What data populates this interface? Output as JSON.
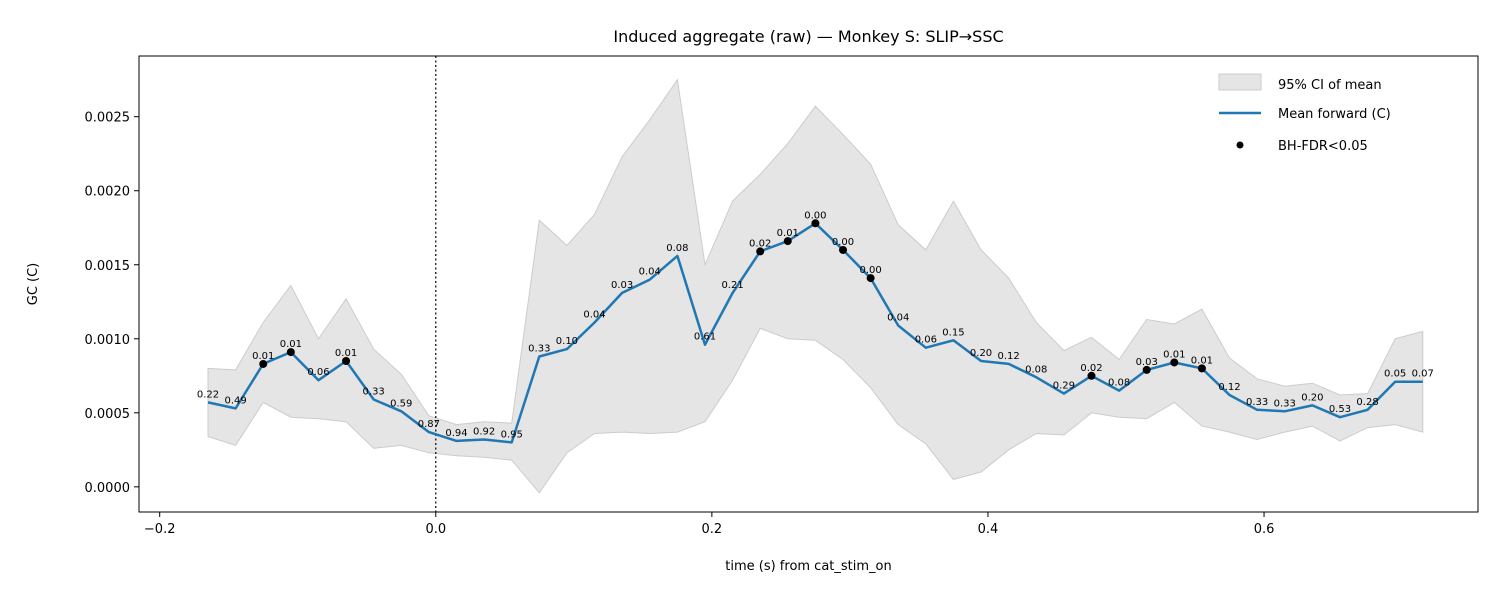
{
  "chart_data": {
    "type": "line",
    "title": "Induced aggregate (raw) — Monkey S: SLIP→SSC",
    "xlabel": "time (s) from cat_stim_on",
    "ylabel": "GC (C)",
    "xlim": [
      -0.215,
      0.755
    ],
    "ylim": [
      -0.00017,
      0.00291
    ],
    "xticks": [
      -0.2,
      0.0,
      0.2,
      0.4,
      0.6
    ],
    "xtick_labels": [
      "−0.2",
      "0.0",
      "0.2",
      "0.4",
      "0.6"
    ],
    "yticks": [
      0.0,
      0.0005,
      0.001,
      0.0015,
      0.002,
      0.0025
    ],
    "ytick_labels": [
      "0.0000",
      "0.0005",
      "0.0010",
      "0.0015",
      "0.0020",
      "0.0025"
    ],
    "grid": false,
    "legend_position": "top-right",
    "vline": {
      "x": 0.0,
      "style": "dotted"
    },
    "colors": {
      "mean_line": "#1f77b4",
      "ci_fill": "#e5e5e5",
      "ci_edge": "#cccccc",
      "sig_marker": "#000000"
    },
    "x": [
      -0.165,
      -0.145,
      -0.125,
      -0.105,
      -0.085,
      -0.065,
      -0.045,
      -0.025,
      -0.005,
      0.015,
      0.035,
      0.055,
      0.075,
      0.095,
      0.115,
      0.135,
      0.155,
      0.175,
      0.195,
      0.215,
      0.235,
      0.255,
      0.275,
      0.295,
      0.315,
      0.335,
      0.355,
      0.375,
      0.395,
      0.415,
      0.435,
      0.455,
      0.475,
      0.495,
      0.515,
      0.535,
      0.555,
      0.575,
      0.595,
      0.615,
      0.635,
      0.655,
      0.675,
      0.695,
      0.715
    ],
    "series": [
      {
        "name": "Mean forward (C)",
        "values": [
          0.00057,
          0.00053,
          0.00083,
          0.00091,
          0.00072,
          0.00085,
          0.00059,
          0.00051,
          0.00037,
          0.00031,
          0.00032,
          0.0003,
          0.00088,
          0.00093,
          0.00111,
          0.00131,
          0.0014,
          0.00156,
          0.00096,
          0.00131,
          0.00159,
          0.00166,
          0.00178,
          0.0016,
          0.00141,
          0.00109,
          0.00094,
          0.00099,
          0.00085,
          0.00083,
          0.00074,
          0.00063,
          0.00075,
          0.00065,
          0.00079,
          0.00084,
          0.0008,
          0.00062,
          0.00052,
          0.00051,
          0.00055,
          0.00047,
          0.00052,
          0.00071,
          0.00071
        ],
        "p_values": [
          "0.22",
          "0.49",
          "0.01",
          "0.01",
          "0.06",
          "0.01",
          "0.33",
          "0.59",
          "0.87",
          "0.94",
          "0.92",
          "0.95",
          "0.33",
          "0.10",
          "0.04",
          "0.03",
          "0.04",
          "0.08",
          "0.61",
          "0.21",
          "0.02",
          "0.01",
          "0.00",
          "0.00",
          "0.00",
          "0.04",
          "0.06",
          "0.15",
          "0.20",
          "0.12",
          "0.08",
          "0.29",
          "0.02",
          "0.08",
          "0.03",
          "0.01",
          "0.01",
          "0.12",
          "0.33",
          "0.33",
          "0.20",
          "0.53",
          "0.28",
          "0.05",
          "0.07"
        ],
        "significant": [
          false,
          false,
          true,
          true,
          false,
          true,
          false,
          false,
          false,
          false,
          false,
          false,
          false,
          false,
          false,
          false,
          false,
          false,
          false,
          false,
          true,
          true,
          true,
          true,
          true,
          false,
          false,
          false,
          false,
          false,
          false,
          false,
          true,
          false,
          true,
          true,
          true,
          false,
          false,
          false,
          false,
          false,
          false,
          false,
          false
        ]
      }
    ],
    "ci": {
      "name": "95% CI of mean",
      "lower": [
        0.00034,
        0.00028,
        0.00057,
        0.00047,
        0.00046,
        0.00044,
        0.00026,
        0.00028,
        0.00023,
        0.00021,
        0.0002,
        0.00018,
        -4e-05,
        0.00023,
        0.00036,
        0.00037,
        0.00036,
        0.00037,
        0.00044,
        0.00072,
        0.00107,
        0.001,
        0.00099,
        0.00086,
        0.00067,
        0.00042,
        0.00029,
        5e-05,
        0.0001,
        0.00025,
        0.00036,
        0.00035,
        0.0005,
        0.00047,
        0.00046,
        0.00057,
        0.00041,
        0.00037,
        0.00032,
        0.00037,
        0.00041,
        0.00031,
        0.0004,
        0.00042,
        0.00037
      ],
      "upper": [
        0.0008,
        0.00079,
        0.00111,
        0.00136,
        0.001,
        0.00127,
        0.00093,
        0.00076,
        0.00048,
        0.00042,
        0.00044,
        0.00043,
        0.0018,
        0.00163,
        0.00184,
        0.00223,
        0.00248,
        0.00275,
        0.0015,
        0.00193,
        0.00211,
        0.00232,
        0.00257,
        0.00238,
        0.00218,
        0.00177,
        0.0016,
        0.00193,
        0.0016,
        0.00141,
        0.00111,
        0.00092,
        0.00101,
        0.00086,
        0.00113,
        0.0011,
        0.0012,
        0.00087,
        0.00073,
        0.00068,
        0.0007,
        0.00062,
        0.00063,
        0.001,
        0.00105
      ]
    },
    "legend": [
      {
        "label": "95% CI of mean",
        "kind": "fill"
      },
      {
        "label": "Mean forward (C)",
        "kind": "line"
      },
      {
        "label": "BH-FDR<0.05",
        "kind": "marker"
      }
    ]
  }
}
